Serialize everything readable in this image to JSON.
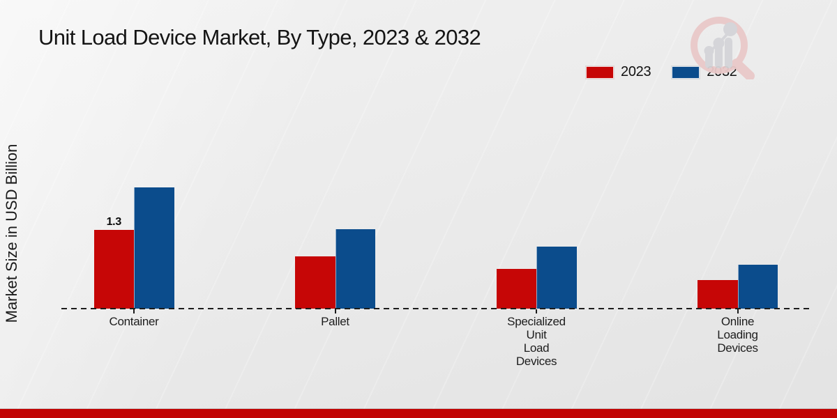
{
  "chart_data": {
    "type": "bar",
    "title": "Unit Load Device Market, By Type, 2023 & 2032",
    "ylabel": "Market Size in USD Billion",
    "xlabel": "",
    "categories": [
      "Container",
      "Pallet",
      "Specialized Unit Load Devices",
      "Online Loading Devices"
    ],
    "series": [
      {
        "name": "2023",
        "color": "#c60606",
        "values": [
          1.3,
          0.86,
          0.65,
          0.47
        ],
        "point_labels": [
          "1.3",
          "",
          "",
          ""
        ]
      },
      {
        "name": "2032",
        "color": "#0b4c8c",
        "values": [
          2.0,
          1.31,
          1.02,
          0.73
        ],
        "point_labels": [
          "",
          "",
          "",
          ""
        ]
      }
    ],
    "legend_position": "top-right",
    "baseline_style": "dashed",
    "grid": false,
    "ylim": [
      0,
      2.3
    ],
    "y_axis_ticks_visible": false
  },
  "icons": {
    "watermark": "magnifier-bar-chart-logo-icon"
  },
  "colors": {
    "series_2023": "#c60606",
    "series_2032": "#0b4c8c",
    "footer_band": "#c10404",
    "axis": "#1c1c1c",
    "watermark_pink": "#e9c9c9",
    "watermark_gray": "#d4d4d8",
    "background": "#ebebeb"
  }
}
